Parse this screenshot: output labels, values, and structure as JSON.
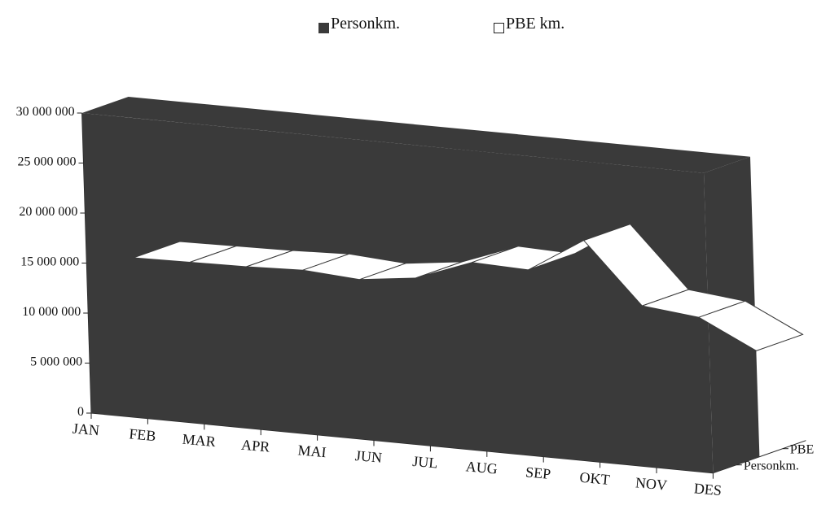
{
  "legend": {
    "items": [
      {
        "label": "Personkm.",
        "color": "#3a3a3a"
      },
      {
        "label": "PBE km.",
        "color": "#ffffff"
      }
    ]
  },
  "chart_data": {
    "type": "area",
    "style": "3d",
    "categories": [
      "JAN",
      "FEB",
      "MAR",
      "APR",
      "MAI",
      "JUN",
      "JUL",
      "AUG",
      "SEP",
      "OKT",
      "NOV",
      "DES"
    ],
    "depth_labels": [
      "Personkm.",
      "PBE km."
    ],
    "ylim": [
      0,
      30000000
    ],
    "yticks": [
      "0",
      "5 000 000",
      "10 000 000",
      "15 000 000",
      "20 000 000",
      "25 000 000",
      "30 000 000"
    ],
    "series": [
      {
        "name": "Personkm.",
        "color": "#3a3a3a",
        "values": [
          30000000,
          30000000,
          30000000,
          30000000,
          30000000,
          30000000,
          30000000,
          30000000,
          30000000,
          30000000,
          30000000,
          30000000
        ]
      },
      {
        "name": "PBE km.",
        "color": "#ffffff",
        "values": [
          13900000,
          14000000,
          14100000,
          14300000,
          13900000,
          14600000,
          16700000,
          16500000,
          20000000,
          14000000,
          13400000,
          10600000
        ]
      }
    ],
    "legend_position": "top",
    "grid": false
  }
}
